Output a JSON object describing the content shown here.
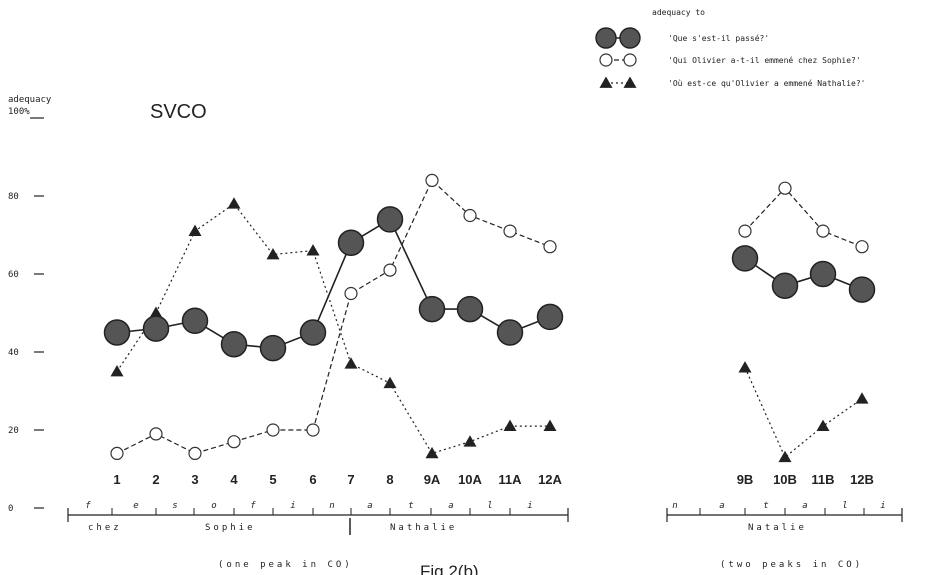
{
  "chart_data": {
    "type": "line",
    "title": "SVCO",
    "caption": "Fig.2(b)",
    "ylabel_line1": "adequacy",
    "ylabel_line2": "100%",
    "ylim": [
      0,
      100
    ],
    "yticks": [
      "0",
      "20",
      "40",
      "60",
      "80"
    ],
    "grid": false,
    "legend_placement": "top-right",
    "legend_title": "adequacy to",
    "panels": [
      {
        "id": "left",
        "categories": [
          "1",
          "2",
          "3",
          "4",
          "5",
          "6",
          "7",
          "8",
          "9A",
          "10A",
          "11A",
          "12A"
        ],
        "syllables": [
          "f",
          "e",
          "s",
          "o",
          "f",
          "i",
          "n",
          "a",
          "t",
          "a",
          "l",
          "i"
        ],
        "words": [
          "chez",
          "Sophie",
          "Nathalie"
        ],
        "note": "(one peak in CO)",
        "series": [
          {
            "name": "'Que s'est-il passé?'",
            "style": "filled",
            "values": [
              45,
              46,
              48,
              42,
              41,
              45,
              68,
              74,
              51,
              51,
              45,
              49
            ]
          },
          {
            "name": "'Qui Olivier a-t-il emmené chez Sophie?'",
            "style": "open",
            "values": [
              14,
              19,
              14,
              17,
              20,
              20,
              55,
              61,
              84,
              75,
              71,
              67
            ]
          },
          {
            "name": "'Où est-ce qu'Olivier a emmené Nathalie?'",
            "style": "triangle",
            "values": [
              35,
              50,
              71,
              78,
              65,
              66,
              37,
              32,
              14,
              17,
              21,
              21
            ]
          }
        ]
      },
      {
        "id": "right",
        "categories": [
          "9B",
          "10B",
          "11B",
          "12B"
        ],
        "syllables": [
          "n",
          "a",
          "t",
          "a",
          "l",
          "i"
        ],
        "words": [
          "Natalie"
        ],
        "note": "(two peaks in CO)",
        "series": [
          {
            "name": "'Que s'est-il passé?'",
            "style": "filled",
            "values": [
              64,
              57,
              60,
              56
            ]
          },
          {
            "name": "'Qui Olivier a-t-il emmené chez Sophie?'",
            "style": "open",
            "values": [
              71,
              82,
              71,
              67
            ]
          },
          {
            "name": "'Où est-ce qu'Olivier a emmené Nathalie?'",
            "style": "triangle",
            "values": [
              36,
              13,
              21,
              28
            ]
          }
        ]
      }
    ],
    "legend": [
      {
        "label": "'Que s'est-il passé?'",
        "style": "filled"
      },
      {
        "label": "'Qui Olivier a-t-il emmené chez Sophie?'",
        "style": "open"
      },
      {
        "label": "'Où est-ce qu'Olivier a emmené Nathalie?'",
        "style": "triangle"
      }
    ]
  }
}
